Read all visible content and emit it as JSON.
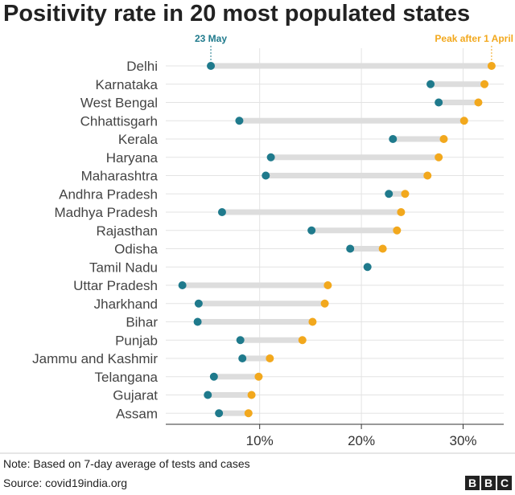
{
  "chart_data": {
    "type": "dumbbell",
    "title": "Positivity rate in 20 most populated states",
    "series": [
      {
        "name": "23 May",
        "color": "#1f7a8c"
      },
      {
        "name": "Peak after 1 April",
        "color": "#f2a81d"
      }
    ],
    "categories": [
      "Delhi",
      "Karnataka",
      "West Bengal",
      "Chhattisgarh",
      "Kerala",
      "Haryana",
      "Maharashtra",
      "Andhra Pradesh",
      "Madhya Pradesh",
      "Rajasthan",
      "Odisha",
      "Tamil Nadu",
      "Uttar Pradesh",
      "Jharkhand",
      "Bihar",
      "Punjab",
      "Jammu and Kashmir",
      "Telangana",
      "Gujarat",
      "Assam"
    ],
    "may23": [
      5.2,
      26.8,
      27.6,
      8.0,
      23.1,
      11.1,
      10.6,
      22.7,
      6.3,
      15.1,
      18.9,
      20.6,
      2.4,
      4.0,
      3.9,
      8.1,
      8.3,
      5.5,
      4.9,
      6.0
    ],
    "peak": [
      32.8,
      32.1,
      31.5,
      30.1,
      28.1,
      27.6,
      26.5,
      24.3,
      23.9,
      23.5,
      22.1,
      null,
      16.7,
      16.4,
      15.2,
      14.2,
      11.0,
      9.9,
      9.2,
      8.9
    ],
    "xlim": [
      0,
      35
    ],
    "xticks": [
      10,
      20,
      30
    ],
    "xtick_labels": [
      "10%",
      "20%",
      "30%"
    ]
  },
  "footer": {
    "note": "Note: Based on 7-day average of tests and cases",
    "source": "Source: covid19india.org",
    "logo": [
      "B",
      "B",
      "C"
    ]
  },
  "colors": {
    "track": "#dddddd",
    "grid": "#e3e3e3",
    "axis": "#333333"
  }
}
